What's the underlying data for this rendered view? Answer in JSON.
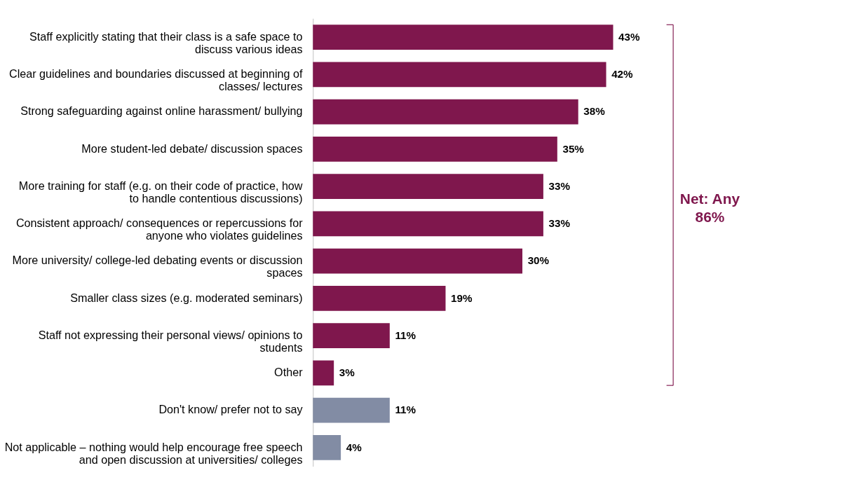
{
  "chart_data": {
    "type": "bar",
    "orientation": "horizontal",
    "categories": [
      "Staff explicitly stating that their class is a safe space to discuss various ideas",
      "Clear guidelines and boundaries discussed at beginning of classes/ lectures",
      "Strong safeguarding against online harassment/ bullying",
      "More student-led debate/ discussion spaces",
      "More training for staff (e.g. on their code of practice, how to handle contentious discussions)",
      "Consistent approach/ consequences or repercussions for anyone who violates guidelines",
      "More university/ college-led debating events or discussion spaces",
      "Smaller class sizes (e.g. moderated seminars)",
      "Staff not expressing their personal views/ opinions to students",
      "Other",
      "Don't know/ prefer not to say",
      "Not applicable – nothing would help encourage free speech and open discussion at universities/ colleges"
    ],
    "values": [
      43,
      42,
      38,
      35,
      33,
      33,
      30,
      19,
      11,
      3,
      11,
      4
    ],
    "value_labels": [
      "43%",
      "42%",
      "38%",
      "35%",
      "33%",
      "33%",
      "30%",
      "19%",
      "11%",
      "3%",
      "11%",
      "4%"
    ],
    "colors": [
      "#7f174d",
      "#7f174d",
      "#7f174d",
      "#7f174d",
      "#7f174d",
      "#7f174d",
      "#7f174d",
      "#7f174d",
      "#7f174d",
      "#7f174d",
      "#828ca4",
      "#828ca4"
    ],
    "annotations": [
      "Net: Any 86%"
    ],
    "grid": false
  }
}
